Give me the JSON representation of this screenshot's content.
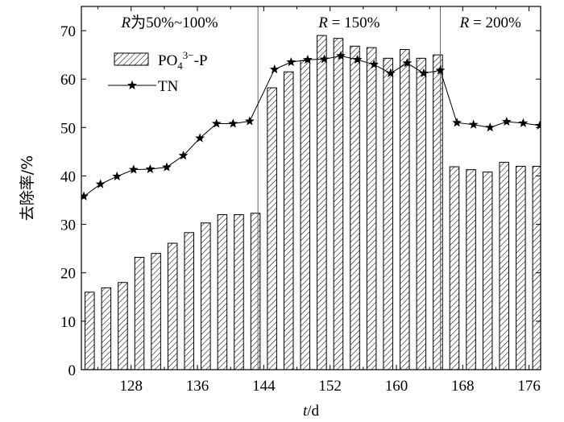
{
  "chart_data": {
    "type": "bar",
    "xlabel_italic": "t",
    "xlabel_unit": "/d",
    "ylabel": "去除率/%",
    "xlim": [
      122,
      177.4
    ],
    "ylim": [
      0,
      75
    ],
    "x_ticks": [
      128,
      136,
      144,
      152,
      160,
      168,
      176
    ],
    "y_ticks": [
      0,
      10,
      20,
      30,
      40,
      50,
      60,
      70
    ],
    "grid": false,
    "legend_position": "top-left",
    "regions": [
      {
        "italic": "R",
        "text": "为50%~100%",
        "start": 122,
        "end": 143.3
      },
      {
        "italic": "R",
        "text": " = 150%",
        "start": 143.3,
        "end": 165.3
      },
      {
        "italic": "R",
        "text": " = 200%",
        "start": 165.3,
        "end": 177.4
      }
    ],
    "region_boundaries": [
      143.3,
      165.3
    ],
    "series": [
      {
        "name": "PO4³⁻-P",
        "legend_main": "PO",
        "legend_sub": "4",
        "legend_sup": "3−",
        "legend_tail": "-P",
        "kind": "bar",
        "x": [
          123,
          125,
          127,
          129,
          131,
          133,
          135,
          137,
          139,
          141,
          143,
          145,
          147,
          149,
          151,
          153,
          155,
          157,
          159,
          161,
          163,
          165,
          167,
          169,
          171,
          173,
          175,
          177
        ],
        "values": [
          16,
          16.9,
          18,
          23.2,
          24,
          26.1,
          28.3,
          30.3,
          32,
          32,
          32.3,
          58.2,
          61.5,
          63.8,
          69,
          68.4,
          66.8,
          66.5,
          64.3,
          66.1,
          64.3,
          65,
          41.9,
          41.3,
          40.8,
          42.8,
          42,
          42
        ]
      },
      {
        "name": "TN",
        "kind": "line",
        "marker": "star",
        "x": [
          122.3,
          124.3,
          126.3,
          128.3,
          130.3,
          132.3,
          134.3,
          136.3,
          138.3,
          140.3,
          142.3,
          145.3,
          147.3,
          149.3,
          151.3,
          153.3,
          155.3,
          157.3,
          159.3,
          161.3,
          163.3,
          165.3,
          167.3,
          169.3,
          171.3,
          173.3,
          175.3,
          177.3
        ],
        "values": [
          35.8,
          38.3,
          39.9,
          41.3,
          41.4,
          41.8,
          44.2,
          47.8,
          50.8,
          50.8,
          51.3,
          62,
          63.5,
          64,
          64.1,
          64.8,
          64,
          63,
          61.2,
          63.3,
          61.2,
          61.8,
          51,
          50.6,
          50,
          51.2,
          50.9,
          50.4
        ]
      }
    ]
  }
}
